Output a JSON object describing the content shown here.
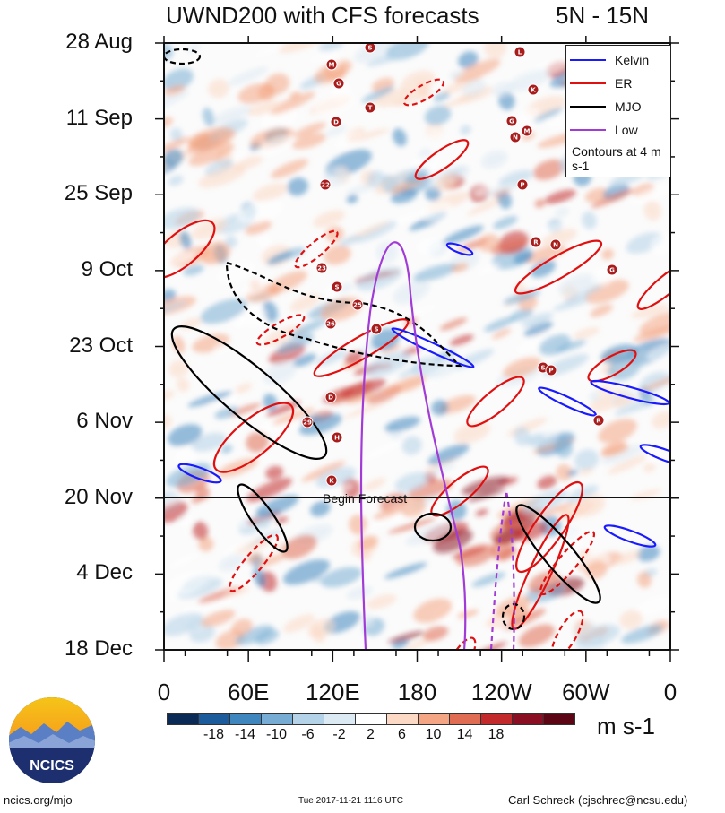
{
  "header": {
    "title": "UWND200 with CFS forecasts",
    "region": "5N - 15N"
  },
  "chart_data": {
    "type": "heatmap",
    "title": "UWND200 with CFS forecasts",
    "region": "5N - 15N",
    "x_axis": {
      "ticks": [
        "0",
        "60E",
        "120E",
        "180",
        "120W",
        "60W",
        "0"
      ],
      "range_deg_east": [
        0,
        360
      ]
    },
    "y_axis": {
      "ticks": [
        "28 Aug",
        "11 Sep",
        "25 Sep",
        "9 Oct",
        "23 Oct",
        "6 Nov",
        "20 Nov",
        "4 Dec",
        "18 Dec"
      ],
      "time_direction": "downward"
    },
    "units": "m s-1",
    "colorbar": {
      "labels": [
        "-18",
        "-14",
        "-10",
        "-6",
        "-2",
        "2",
        "6",
        "10",
        "14",
        "18"
      ],
      "colors": [
        "#0b2a55",
        "#1d5c9c",
        "#3f86bf",
        "#77add4",
        "#b4d2e8",
        "#dceaf3",
        "#ffffff",
        "#fbd9c4",
        "#f4a684",
        "#e06c54",
        "#c22a2c",
        "#8a0f22",
        "#5c0515"
      ]
    },
    "legend": [
      {
        "label": "Kelvin",
        "color": "#1a1aff"
      },
      {
        "label": "ER",
        "color": "#e01010"
      },
      {
        "label": "MJO",
        "color": "#000000"
      },
      {
        "label": "Low",
        "color": "#a23bd6"
      }
    ],
    "contour_note": "Contours at 4 m s-1",
    "forecast_marker": {
      "label": "Begin Forecast",
      "date": "20 Nov"
    },
    "storm_labels": [
      "S",
      "M",
      "G",
      "D",
      "T",
      "L",
      "K",
      "G",
      "N",
      "M",
      "22",
      "P",
      "R",
      "N",
      "G",
      "23",
      "S",
      "26",
      "25",
      "S",
      "S",
      "P",
      "D",
      "29",
      "H",
      "R",
      "K"
    ]
  },
  "footer": {
    "site": "ncics.org/mjo",
    "timestamp": "Tue 2017-11-21 1116 UTC",
    "author": "Carl Schreck (cjschrec@ncsu.edu)",
    "logo_text": "NCICS"
  },
  "theme": {
    "kelvin": "#1a1aff",
    "er": "#e01010",
    "mjo": "#000000",
    "low": "#a23bd6"
  }
}
